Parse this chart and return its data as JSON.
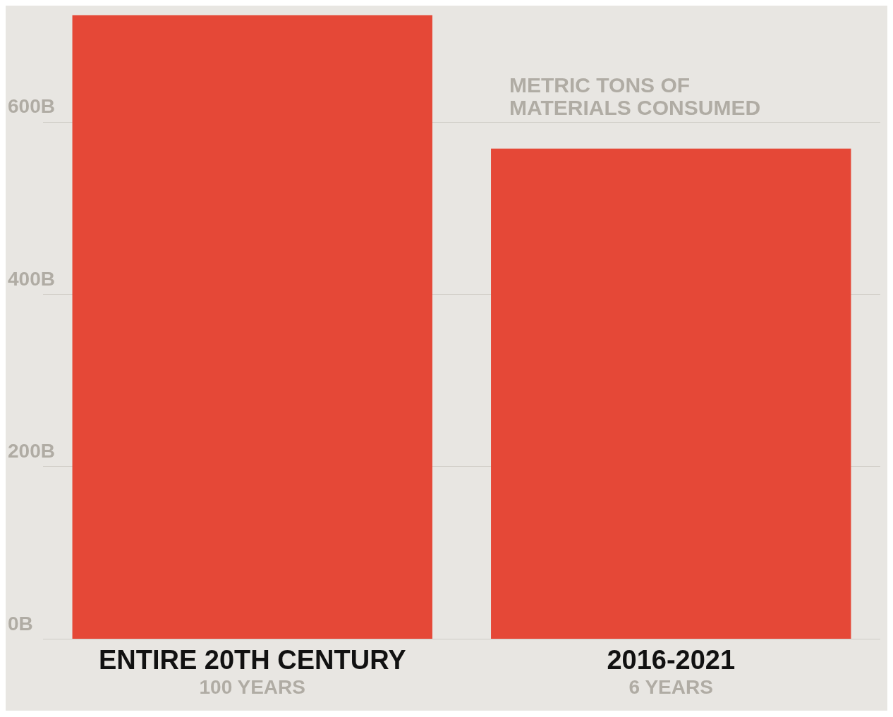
{
  "chart_data": {
    "type": "bar",
    "ylabel": "METRIC TONS OF\nMATERIALS CONSUMED",
    "categories": [
      "ENTIRE 20TH CENTURY\n100 YEARS",
      "2016-2021\n6 YEARS"
    ],
    "values": [
      724,
      569
    ],
    "color": "#e54837",
    "ylim": [
      0,
      735
    ],
    "yticks": [
      {
        "value": 0,
        "label": "0B"
      },
      {
        "value": 200,
        "label": "200B"
      },
      {
        "value": 400,
        "label": "400B"
      },
      {
        "value": 600,
        "label": "600B"
      }
    ],
    "grid": "y"
  }
}
